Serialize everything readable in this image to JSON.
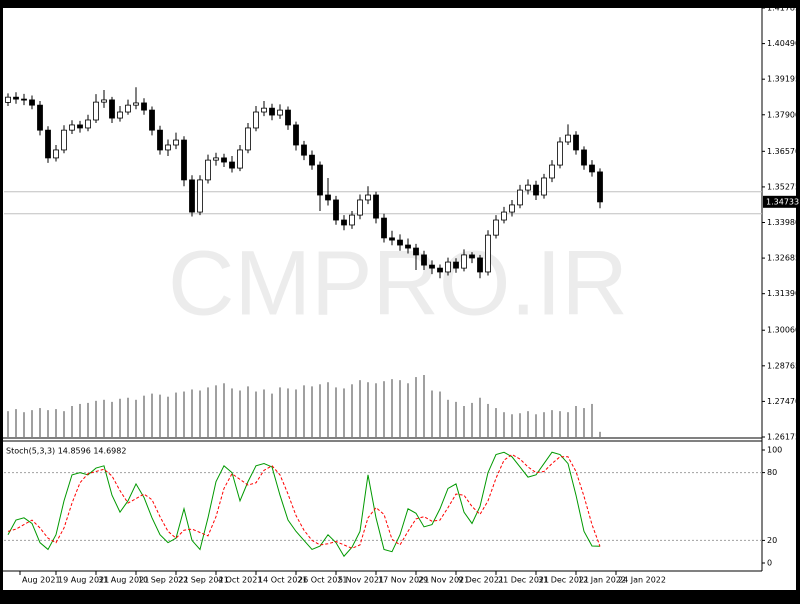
{
  "chart_data": {
    "type": "candlestick",
    "watermark": "CMPRO.IR",
    "up_color": "#ffffff",
    "down_color": "#000000",
    "outline_color": "#000000",
    "volume_color": "#808080",
    "hline_color": "#c0c0c0",
    "grid": false,
    "ylim": [
      1.26175,
      1.41785
    ],
    "yticks": [
      1.41785,
      {
        "value": 1.4049,
        "label": "1.40490"
      },
      1.39195,
      {
        "value": 1.379,
        "label": "1.37900"
      },
      {
        "value": 1.3657,
        "label": "1.36570"
      },
      1.35275,
      {
        "value": 1.3398,
        "label": "1.33980"
      },
      1.32685,
      {
        "value": 1.3139,
        "label": "1.31390"
      },
      {
        "value": 1.3006,
        "label": "1.30060"
      },
      1.28765,
      {
        "value": 1.2747,
        "label": "1.27470"
      },
      1.26175
    ],
    "current_price": 1.34733,
    "hlines": [
      1.351,
      1.343
    ],
    "xlim": [
      -0.5,
      94.25
    ],
    "xticks": [
      {
        "value": 1.5,
        "label": "Aug 2021"
      },
      {
        "value": 6,
        "label": "19 Aug 2021"
      },
      {
        "value": 11,
        "label": "31 Aug 2021"
      },
      {
        "value": 16,
        "label": "10 Sep 2021"
      },
      {
        "value": 21,
        "label": "22 Sep 2021"
      },
      {
        "value": 26,
        "label": "4 Oct 2021"
      },
      {
        "value": 31,
        "label": "14 Oct 2021"
      },
      {
        "value": 36,
        "label": "26 Oct 2021"
      },
      {
        "value": 41,
        "label": "5 Nov 2021"
      },
      {
        "value": 46,
        "label": "17 Nov 2021"
      },
      {
        "value": 51,
        "label": "29 Nov 2021"
      },
      {
        "value": 56,
        "label": "9 Dec 2021"
      },
      {
        "value": 61,
        "label": "21 Dec 2021"
      },
      {
        "value": 66,
        "label": "31 Dec 2021"
      },
      {
        "value": 71,
        "label": "12 Jan 2022"
      },
      {
        "value": 76,
        "label": "24 Jan 2022"
      }
    ],
    "ohlc": [
      [
        1.3835,
        1.3868,
        1.3822,
        1.3854
      ],
      [
        1.3854,
        1.3872,
        1.383,
        1.3847
      ],
      [
        1.3847,
        1.3866,
        1.3825,
        1.3844
      ],
      [
        1.3844,
        1.386,
        1.381,
        1.3825
      ],
      [
        1.3825,
        1.384,
        1.3715,
        1.3734
      ],
      [
        1.3734,
        1.3748,
        1.3615,
        1.3633
      ],
      [
        1.3633,
        1.368,
        1.362,
        1.3662
      ],
      [
        1.3662,
        1.3752,
        1.365,
        1.3734
      ],
      [
        1.3734,
        1.377,
        1.372,
        1.3753
      ],
      [
        1.3753,
        1.3768,
        1.3725,
        1.3742
      ],
      [
        1.3742,
        1.379,
        1.373,
        1.3771
      ],
      [
        1.3771,
        1.3865,
        1.376,
        1.3836
      ],
      [
        1.3836,
        1.388,
        1.3815,
        1.3844
      ],
      [
        1.3844,
        1.3855,
        1.376,
        1.3778
      ],
      [
        1.3778,
        1.3822,
        1.3765,
        1.38
      ],
      [
        1.38,
        1.3845,
        1.379,
        1.3825
      ],
      [
        1.3825,
        1.389,
        1.381,
        1.3833
      ],
      [
        1.3833,
        1.385,
        1.379,
        1.3807
      ],
      [
        1.3807,
        1.382,
        1.3715,
        1.3734
      ],
      [
        1.3734,
        1.375,
        1.3645,
        1.3662
      ],
      [
        1.3662,
        1.37,
        1.364,
        1.368
      ],
      [
        1.368,
        1.3725,
        1.3665,
        1.3698
      ],
      [
        1.3698,
        1.3712,
        1.353,
        1.3553
      ],
      [
        1.3553,
        1.357,
        1.342,
        1.3436
      ],
      [
        1.3436,
        1.357,
        1.3425,
        1.3553
      ],
      [
        1.3553,
        1.3645,
        1.354,
        1.3625
      ],
      [
        1.3625,
        1.3652,
        1.3605,
        1.3633
      ],
      [
        1.3633,
        1.3648,
        1.36,
        1.3618
      ],
      [
        1.3618,
        1.364,
        1.358,
        1.3596
      ],
      [
        1.3596,
        1.368,
        1.3585,
        1.3662
      ],
      [
        1.3662,
        1.376,
        1.365,
        1.3742
      ],
      [
        1.3742,
        1.3822,
        1.373,
        1.38
      ],
      [
        1.38,
        1.384,
        1.3785,
        1.3814
      ],
      [
        1.3814,
        1.383,
        1.377,
        1.3789
      ],
      [
        1.3789,
        1.3828,
        1.3775,
        1.3807
      ],
      [
        1.3807,
        1.382,
        1.3735,
        1.3753
      ],
      [
        1.3753,
        1.3765,
        1.366,
        1.368
      ],
      [
        1.368,
        1.3695,
        1.3625,
        1.3643
      ],
      [
        1.3643,
        1.366,
        1.359,
        1.3607
      ],
      [
        1.3607,
        1.362,
        1.344,
        1.3498
      ],
      [
        1.3498,
        1.356,
        1.346,
        1.348
      ],
      [
        1.348,
        1.3495,
        1.339,
        1.3407
      ],
      [
        1.3407,
        1.3425,
        1.337,
        1.3389
      ],
      [
        1.3389,
        1.344,
        1.3375,
        1.3425
      ],
      [
        1.3425,
        1.35,
        1.341,
        1.348
      ],
      [
        1.348,
        1.353,
        1.3465,
        1.3498
      ],
      [
        1.3498,
        1.351,
        1.3395,
        1.3414
      ],
      [
        1.3414,
        1.343,
        1.3325,
        1.3342
      ],
      [
        1.3342,
        1.3368,
        1.3315,
        1.3334
      ],
      [
        1.3334,
        1.3355,
        1.3295,
        1.3316
      ],
      [
        1.3316,
        1.334,
        1.3285,
        1.3305
      ],
      [
        1.3305,
        1.332,
        1.3225,
        1.328
      ],
      [
        1.328,
        1.3295,
        1.3225,
        1.3243
      ],
      [
        1.3243,
        1.326,
        1.321,
        1.3232
      ],
      [
        1.3232,
        1.3245,
        1.3195,
        1.3218
      ],
      [
        1.3218,
        1.327,
        1.3205,
        1.3254
      ],
      [
        1.3254,
        1.3268,
        1.3215,
        1.3232
      ],
      [
        1.3232,
        1.33,
        1.322,
        1.328
      ],
      [
        1.328,
        1.329,
        1.325,
        1.3269
      ],
      [
        1.3269,
        1.328,
        1.3195,
        1.3218
      ],
      [
        1.3218,
        1.337,
        1.3205,
        1.3352
      ],
      [
        1.3352,
        1.3425,
        1.334,
        1.3407
      ],
      [
        1.3407,
        1.3455,
        1.3395,
        1.3436
      ],
      [
        1.3436,
        1.348,
        1.342,
        1.3462
      ],
      [
        1.3462,
        1.3535,
        1.345,
        1.3516
      ],
      [
        1.3516,
        1.3555,
        1.35,
        1.3534
      ],
      [
        1.3534,
        1.355,
        1.348,
        1.3498
      ],
      [
        1.3498,
        1.3575,
        1.3485,
        1.356
      ],
      [
        1.356,
        1.3625,
        1.3545,
        1.3607
      ],
      [
        1.3607,
        1.3708,
        1.3595,
        1.3691
      ],
      [
        1.3691,
        1.3755,
        1.368,
        1.3716
      ],
      [
        1.3716,
        1.373,
        1.3645,
        1.3662
      ],
      [
        1.3662,
        1.3675,
        1.359,
        1.3607
      ],
      [
        1.3607,
        1.3625,
        1.3565,
        1.3582
      ],
      [
        1.3582,
        1.3595,
        1.345,
        1.3473
      ]
    ],
    "volume": [
      25,
      27,
      24,
      26,
      28,
      26,
      27,
      25,
      30,
      32,
      33,
      35,
      36,
      34,
      37,
      38,
      36,
      40,
      42,
      41,
      39,
      43,
      44,
      46,
      45,
      48,
      50,
      52,
      47,
      45,
      49,
      44,
      46,
      42,
      48,
      47,
      46,
      50,
      49,
      51,
      53,
      48,
      47,
      51,
      55,
      53,
      52,
      54,
      56,
      55,
      52,
      58,
      60,
      45,
      44,
      36,
      34,
      30,
      33,
      38,
      32,
      28,
      24,
      22,
      23,
      25,
      22,
      24,
      26,
      25,
      24,
      30,
      28,
      32,
      5
    ],
    "stoch": {
      "label": "Stoch(5,3,3) 14.8596 14.6982",
      "ylim": [
        0,
        100
      ],
      "yticks": [
        100,
        80,
        20,
        0
      ],
      "levels": [
        80,
        20
      ],
      "level_color": "#a0a0a0",
      "series": [
        {
          "name": "Main",
          "color": "#009900",
          "dash": false,
          "values": [
            25,
            38,
            40,
            35,
            18,
            12,
            25,
            55,
            78,
            80,
            78,
            84,
            86,
            60,
            45,
            55,
            70,
            58,
            40,
            25,
            18,
            22,
            48,
            20,
            12,
            40,
            72,
            86,
            80,
            55,
            72,
            86,
            88,
            85,
            60,
            38,
            28,
            20,
            12,
            15,
            25,
            18,
            6,
            14,
            28,
            78,
            40,
            12,
            10,
            25,
            48,
            44,
            32,
            34,
            48,
            66,
            70,
            45,
            35,
            50,
            80,
            96,
            98,
            94,
            85,
            76,
            78,
            88,
            98,
            96,
            88,
            60,
            28,
            15,
            14.8596
          ]
        },
        {
          "name": "Signal",
          "color": "#ff0000",
          "dash": true,
          "values": [
            28,
            30,
            34,
            38,
            31,
            22,
            18,
            31,
            53,
            71,
            79,
            81,
            83,
            77,
            64,
            53,
            57,
            61,
            56,
            41,
            28,
            22,
            29,
            30,
            27,
            24,
            41,
            66,
            79,
            74,
            69,
            71,
            82,
            86,
            78,
            61,
            42,
            29,
            20,
            16,
            17,
            19,
            16,
            13,
            16,
            40,
            49,
            43,
            21,
            16,
            28,
            39,
            41,
            37,
            38,
            49,
            61,
            60,
            50,
            43,
            55,
            75,
            91,
            96,
            92,
            85,
            80,
            81,
            88,
            94,
            94,
            81,
            59,
            34,
            14.6982
          ]
        }
      ]
    }
  }
}
